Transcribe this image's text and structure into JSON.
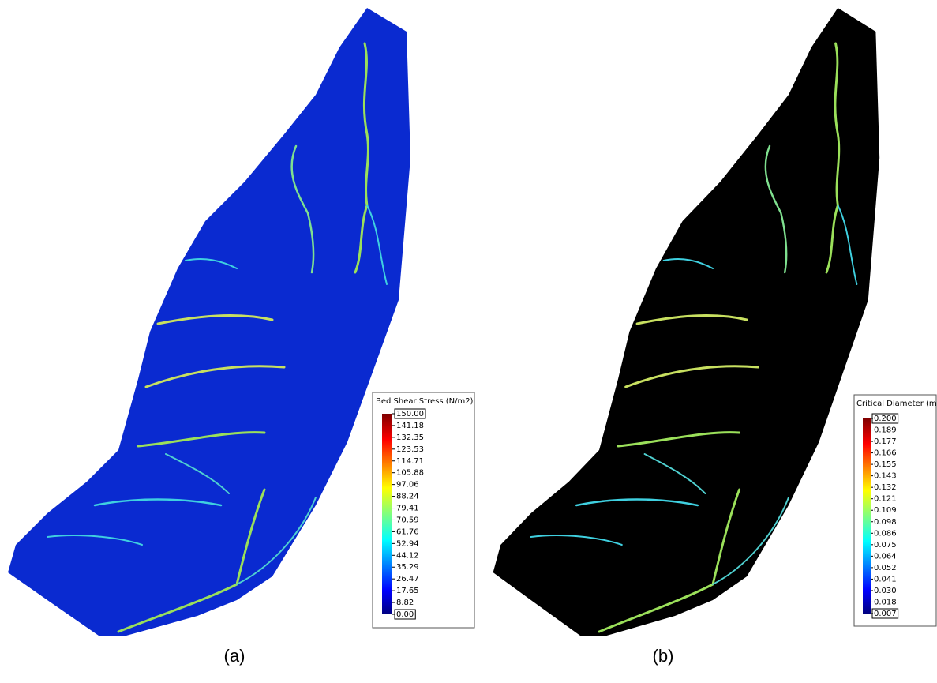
{
  "panels": [
    {
      "label": "(a)",
      "legend": {
        "title": "Bed Shear Stress (N/m2)",
        "ticks": [
          "150.00",
          "141.18",
          "132.35",
          "123.53",
          "114.71",
          "105.88",
          "97.06",
          "88.24",
          "79.41",
          "70.59",
          "61.76",
          "52.94",
          "44.12",
          "35.29",
          "26.47",
          "17.65",
          "8.82",
          "0.00"
        ]
      }
    },
    {
      "label": "(b)",
      "legend": {
        "title": "Critical Diameter (m)",
        "ticks": [
          "0.200",
          "0.189",
          "0.177",
          "0.166",
          "0.155",
          "0.143",
          "0.132",
          "0.121",
          "0.109",
          "0.098",
          "0.086",
          "0.075",
          "0.064",
          "0.052",
          "0.041",
          "0.030",
          "0.018",
          "0.007"
        ]
      }
    }
  ]
}
